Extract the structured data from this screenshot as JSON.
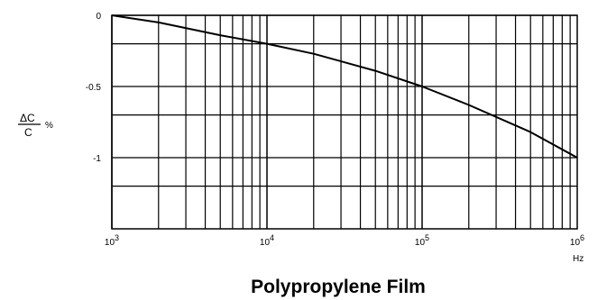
{
  "chart_data": {
    "type": "line",
    "title": "Polypropylene Film",
    "xlabel": "Hz",
    "ylabel": {
      "numerator": "ΔC",
      "denominator": "C",
      "unit": "%"
    },
    "xscale": "log",
    "xlim": [
      1000,
      1000000
    ],
    "ylim": [
      -1.5,
      0
    ],
    "x_ticks": [
      {
        "base": "10",
        "exp": "3",
        "value": 1000
      },
      {
        "base": "10",
        "exp": "4",
        "value": 10000
      },
      {
        "base": "10",
        "exp": "5",
        "value": 100000
      },
      {
        "base": "10",
        "exp": "6",
        "value": 1000000
      }
    ],
    "y_ticks": [
      {
        "label": "0",
        "value": 0
      },
      {
        "label": "-0.5",
        "value": -0.5
      },
      {
        "label": "-1",
        "value": -1
      }
    ],
    "y_minor_gridlines": [
      -0.2,
      -0.7,
      -1.2
    ],
    "grid": true,
    "series": [
      {
        "x": [
          1000,
          2000,
          5000,
          10000,
          20000,
          50000,
          100000,
          200000,
          500000,
          1000000
        ],
        "y": [
          0,
          -0.05,
          -0.14,
          -0.2,
          -0.27,
          -0.39,
          -0.5,
          -0.63,
          -0.82,
          -1.0
        ]
      }
    ]
  }
}
